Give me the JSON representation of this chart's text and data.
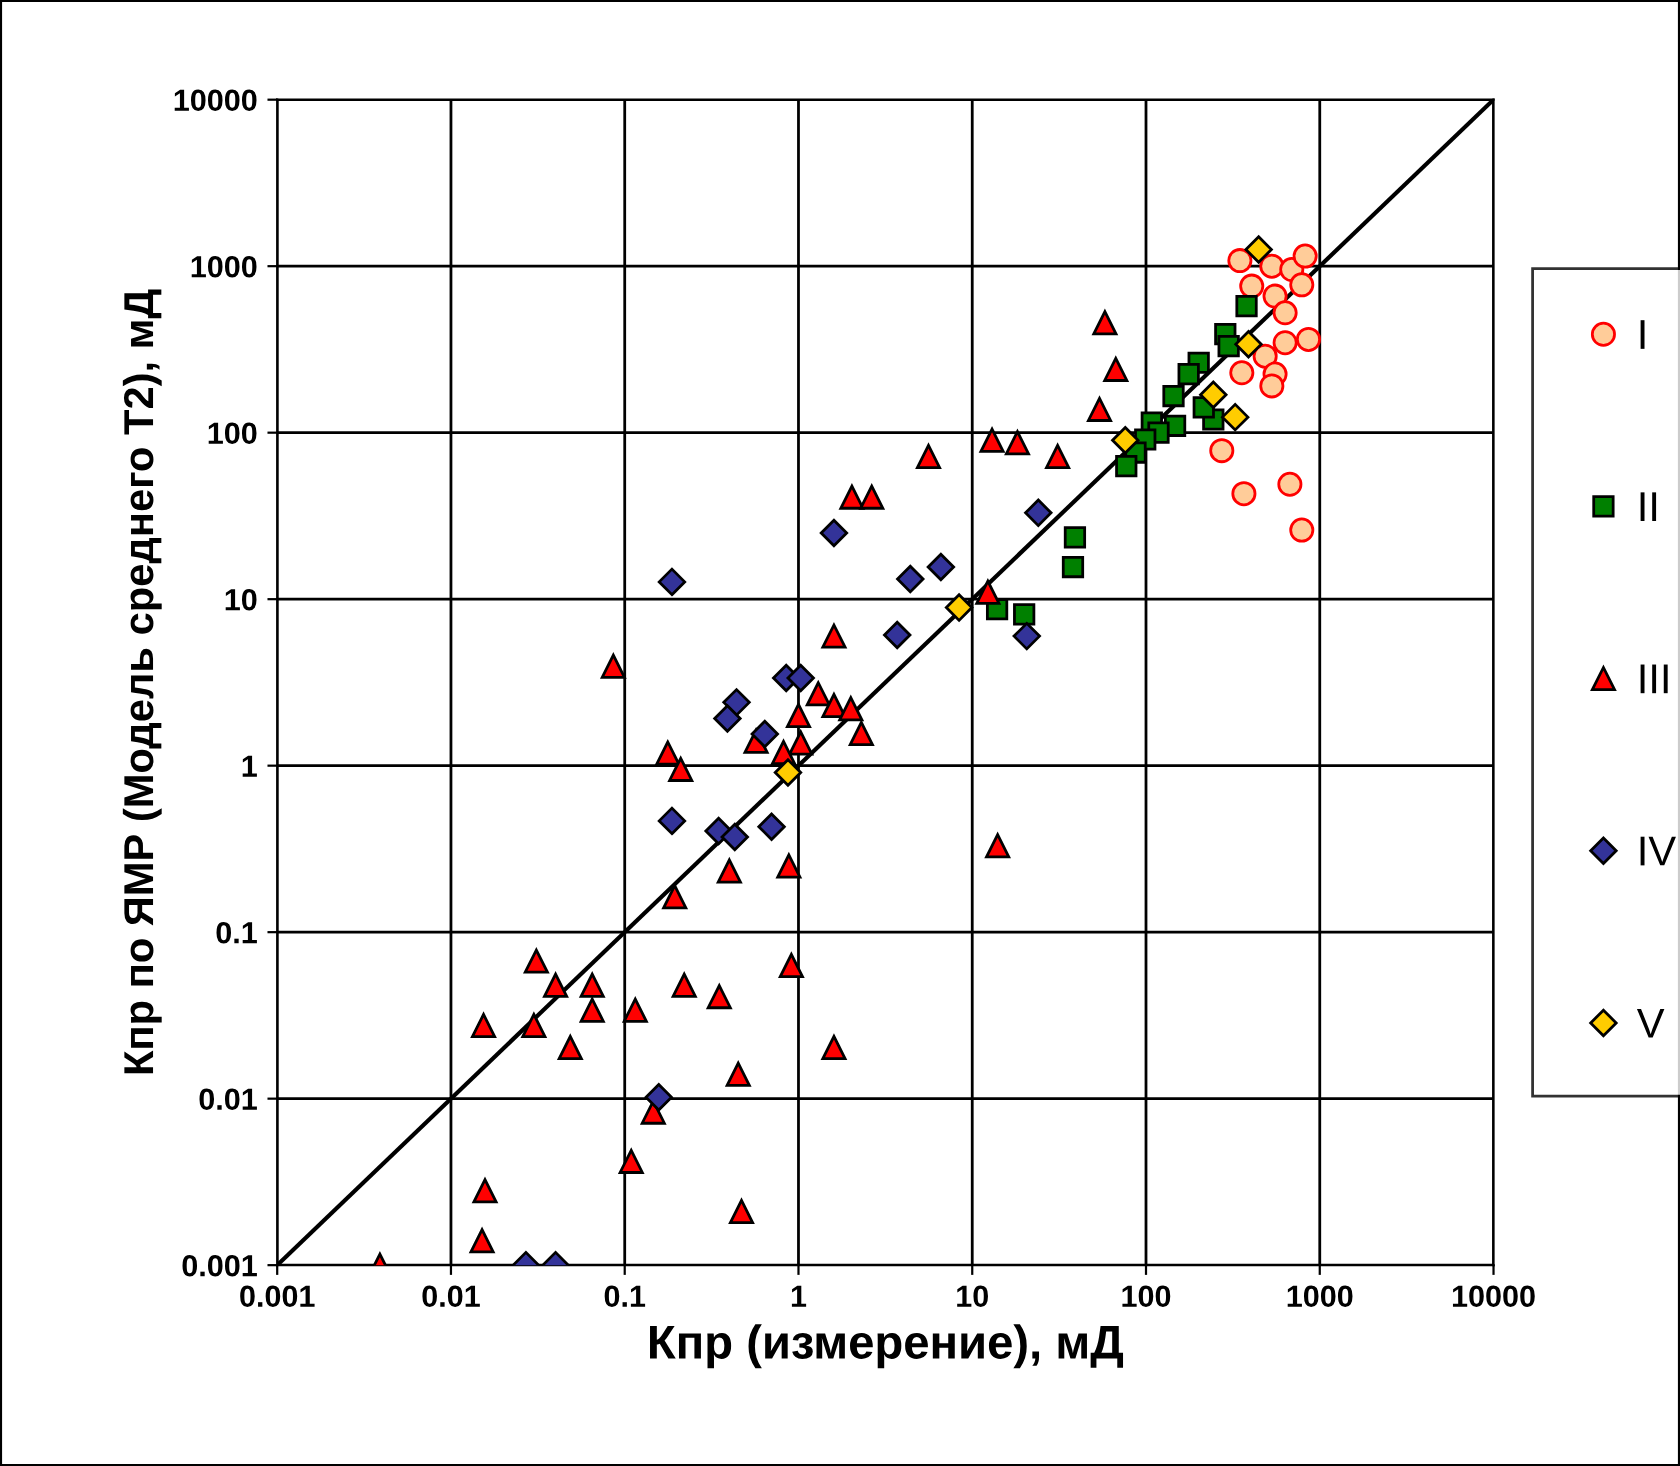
{
  "chart_data": {
    "type": "scatter",
    "xlabel": "Кпр (измерение), мД",
    "ylabel": "Кпр по ЯМР (Модель среднего Т2), мД",
    "log": "xy",
    "grid": true,
    "legend": "right",
    "xlim": [
      0.001,
      10000
    ],
    "ylim": [
      0.001,
      10000
    ],
    "xticks": [
      0.001,
      0.01,
      0.1,
      1,
      10,
      100,
      1000,
      10000
    ],
    "yticks": [
      0.001,
      0.01,
      0.1,
      1,
      10,
      100,
      1000,
      10000
    ],
    "series": [
      {
        "name": "I",
        "color": "#ffcc99",
        "marker": "circle",
        "x": [
          347,
          530,
          690,
          824,
          406,
          553,
          788,
          632,
          485,
          632,
          861,
          356,
          553,
          530,
          273,
          366,
          673,
          788
        ],
        "values": [
          1080,
          1000,
          955,
          1150,
          759,
          661,
          773,
          525,
          288,
          347,
          363,
          229,
          225,
          191,
          78,
          43,
          49,
          26
        ]
      },
      {
        "name": "II",
        "color": "#008000",
        "marker": "square",
        "x": [
          379,
          286,
          299,
          201,
          176,
          144,
          244,
          147,
          108,
          118,
          99,
          87,
          77,
          39,
          38,
          13.9,
          19.9,
          215
        ],
        "values": [
          575,
          391,
          331,
          263,
          225,
          166,
          120,
          110,
          115,
          100,
          91,
          76,
          63,
          23.5,
          15.6,
          8.7,
          8.1,
          142
        ]
      },
      {
        "name": "III",
        "color": "#ff0000",
        "marker": "triangle",
        "x": [
          0.177,
          0.21,
          0.4,
          0.88,
          0.194,
          0.031,
          0.04,
          0.065,
          0.065,
          0.115,
          0.22,
          0.35,
          0.91,
          0.0154,
          0.03,
          0.0486,
          1.6,
          0.45,
          0.146,
          0.109,
          0.0157,
          0.0151,
          0.47,
          0.0039,
          0.086,
          5.6,
          2.03,
          2.64,
          1.6,
          1.3,
          1.6,
          2.0,
          2.3,
          1.0,
          1.03,
          0.82,
          0.57,
          58,
          67,
          54,
          13,
          18.2,
          31,
          12.3,
          14
        ],
        "values": [
          1.19,
          0.95,
          0.233,
          0.25,
          0.163,
          0.067,
          0.048,
          0.048,
          0.034,
          0.034,
          0.048,
          0.041,
          0.063,
          0.0275,
          0.0275,
          0.0203,
          0.0203,
          0.014,
          0.0083,
          0.0042,
          0.0028,
          0.0014,
          0.0021,
          0.001,
          3.95,
          72,
          41,
          41,
          6.0,
          2.7,
          2.3,
          2.2,
          1.56,
          2.0,
          1.37,
          1.2,
          1.4,
          457,
          240,
          138,
          90,
          87,
          72,
          11,
          0.33
        ]
      },
      {
        "name": "IV",
        "color": "#333399",
        "marker": "diamond",
        "x": [
          1.6,
          24,
          4.4,
          6.6,
          3.7,
          20.6,
          0.187,
          0.85,
          1.03,
          0.44,
          0.39,
          0.64,
          0.187,
          0.347,
          0.43,
          0.7,
          0.157,
          0.027,
          0.04
        ],
        "values": [
          25,
          33,
          13.2,
          15.6,
          6.1,
          6.0,
          12.7,
          3.36,
          3.36,
          2.4,
          1.92,
          1.55,
          0.466,
          0.405,
          0.373,
          0.43,
          0.0102,
          0.001,
          0.001
        ]
      },
      {
        "name": "V",
        "color": "#ffcc00",
        "marker": "diamond",
        "x": [
          445,
          389,
          244,
          326,
          76,
          8.4,
          0.87
        ],
        "values": [
          1259,
          340,
          169,
          124,
          90,
          8.9,
          0.91
        ]
      },
      {
        "type": "line",
        "color": "#000000",
        "marker": "none",
        "x": [
          0.001,
          10000
        ],
        "values": [
          0.001,
          10000
        ]
      }
    ]
  }
}
